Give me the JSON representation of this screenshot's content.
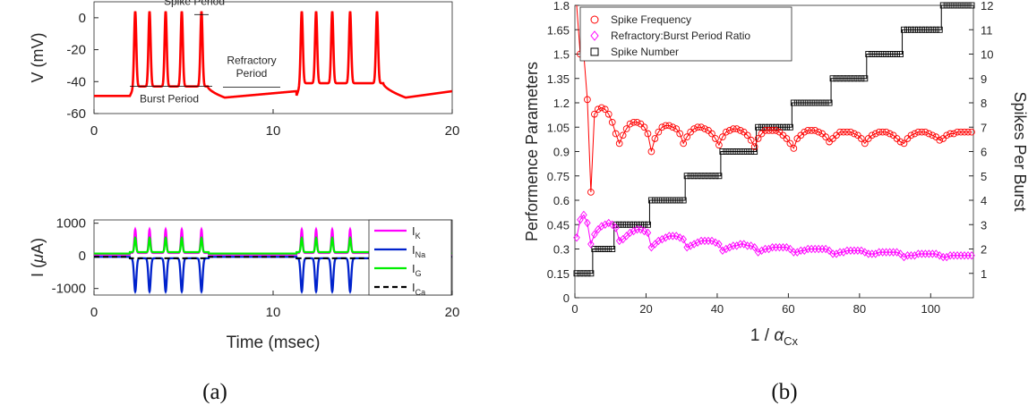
{
  "captions": {
    "a": "(a)",
    "b": "(b)"
  },
  "chart_data": [
    {
      "id": "voltage",
      "type": "line",
      "ylabel": "V (mV)",
      "xlim": [
        0,
        20
      ],
      "ylim": [
        -60,
        10
      ],
      "xticks": [
        0,
        10,
        20
      ],
      "yticks": [
        0,
        -20,
        -40,
        -60
      ],
      "color": "#ff0000",
      "rest_mv": -49,
      "spike_peak_mv": 4,
      "bursts": [
        {
          "plateau_mv": -43,
          "spike_times": [
            2.3,
            3.1,
            4.0,
            4.9,
            6.0
          ],
          "ahp_end": 7.3
        },
        {
          "plateau_mv": -41,
          "spike_times": [
            11.6,
            12.4,
            13.3,
            14.3,
            15.8
          ],
          "ahp_end": 17.4
        }
      ],
      "annotations": {
        "spike_period": "Spike Period",
        "burst_period": "Burst Period",
        "refractory_line1": "Refractory",
        "refractory_line2": "Period"
      }
    },
    {
      "id": "currents",
      "type": "line",
      "xlabel": "Time (msec)",
      "ylabel_main": "I (",
      "ylabel_mu": "μ",
      "ylabel_tail": "A)",
      "xlim": [
        0,
        20
      ],
      "ylim": [
        -1200,
        1100
      ],
      "xticks": [
        0,
        10,
        20
      ],
      "yticks": [
        1000,
        0,
        -1000
      ],
      "series": [
        {
          "name": "I",
          "sub": "K",
          "color": "#ff00ff",
          "spike_peak": 760,
          "base": 40
        },
        {
          "name": "I",
          "sub": "Na",
          "color": "#0022cc",
          "spike_peak": -1020,
          "base": -30
        },
        {
          "name": "I",
          "sub": "G",
          "color": "#00ee00",
          "spike_peak": 460,
          "base": 70
        },
        {
          "name": "I",
          "sub": "Ca",
          "color": "#000000",
          "dashed": true,
          "base": -30
        }
      ]
    },
    {
      "id": "performance",
      "type": "scatter",
      "xlabel_main": "1 / ",
      "xlabel_alpha": "α",
      "xlabel_sub": "Cx",
      "ylabel_left": "Performence Parameters",
      "ylabel_right": "Spikes Per Burst",
      "xlim": [
        0,
        112
      ],
      "ylim_left": [
        0,
        1.8
      ],
      "ylim_right": [
        0,
        12
      ],
      "xticks": [
        0,
        20,
        40,
        60,
        80,
        100
      ],
      "yticks_left": [
        "0",
        "0.15",
        "0.3",
        "0.45",
        "0.6",
        "0.75",
        "0.9",
        "1.05",
        "1.2",
        "1.35",
        "1.5",
        "1.65",
        "1.8"
      ],
      "yticks_right": [
        "1",
        "2",
        "3",
        "4",
        "5",
        "6",
        "7",
        "8",
        "9",
        "10",
        "11",
        "12"
      ],
      "legend": [
        "Spike Frequency",
        "Refractory:Burst Period Ratio",
        "Spike Number"
      ],
      "colors": {
        "freq": "#ff0000",
        "ratio": "#ff00ff",
        "count": "#000000"
      },
      "spike_number_steps": [
        {
          "x_start": 0,
          "x_end": 5,
          "n": 1
        },
        {
          "x_start": 5,
          "x_end": 11,
          "n": 2
        },
        {
          "x_start": 11,
          "x_end": 21,
          "n": 3
        },
        {
          "x_start": 21,
          "x_end": 31,
          "n": 4
        },
        {
          "x_start": 31,
          "x_end": 41,
          "n": 5
        },
        {
          "x_start": 41,
          "x_end": 51,
          "n": 6
        },
        {
          "x_start": 51,
          "x_end": 61,
          "n": 7
        },
        {
          "x_start": 61,
          "x_end": 72,
          "n": 8
        },
        {
          "x_start": 72,
          "x_end": 82,
          "n": 9
        },
        {
          "x_start": 82,
          "x_end": 92,
          "n": 10
        },
        {
          "x_start": 92,
          "x_end": 103,
          "n": 11
        },
        {
          "x_start": 103,
          "x_end": 112,
          "n": 12
        }
      ],
      "spike_frequency": [
        [
          0.5,
          1.8
        ],
        [
          1.5,
          1.5
        ],
        [
          2.5,
          1.5
        ],
        [
          3.5,
          1.22
        ],
        [
          4.5,
          0.65
        ],
        [
          5.5,
          1.13
        ],
        [
          6.5,
          1.16
        ],
        [
          7.5,
          1.17
        ],
        [
          8.5,
          1.16
        ],
        [
          9.5,
          1.13
        ],
        [
          10.5,
          1.08
        ],
        [
          11.5,
          1.01
        ],
        [
          12.5,
          0.95
        ],
        [
          13.5,
          1.0
        ],
        [
          14.5,
          1.04
        ],
        [
          15.5,
          1.07
        ],
        [
          16.5,
          1.08
        ],
        [
          17.5,
          1.08
        ],
        [
          18.5,
          1.07
        ],
        [
          19.5,
          1.05
        ],
        [
          20.5,
          1.01
        ],
        [
          21.5,
          0.9
        ],
        [
          22.5,
          0.98
        ],
        [
          23.5,
          1.02
        ],
        [
          24.5,
          1.05
        ],
        [
          25.5,
          1.06
        ],
        [
          26.5,
          1.06
        ],
        [
          27.5,
          1.05
        ],
        [
          28.5,
          1.04
        ],
        [
          29.5,
          1.01
        ],
        [
          30.5,
          0.95
        ],
        [
          31.5,
          0.99
        ],
        [
          32.5,
          1.02
        ],
        [
          33.5,
          1.04
        ],
        [
          34.5,
          1.05
        ],
        [
          35.5,
          1.05
        ],
        [
          36.5,
          1.04
        ],
        [
          37.5,
          1.03
        ],
        [
          38.5,
          1.01
        ],
        [
          39.5,
          0.98
        ],
        [
          40.5,
          0.94
        ],
        [
          41.5,
          0.99
        ],
        [
          42.5,
          1.02
        ],
        [
          43.5,
          1.03
        ],
        [
          44.5,
          1.04
        ],
        [
          45.5,
          1.04
        ],
        [
          46.5,
          1.03
        ],
        [
          47.5,
          1.02
        ],
        [
          48.5,
          1.0
        ],
        [
          49.5,
          0.97
        ],
        [
          50.5,
          0.93
        ],
        [
          51.5,
          0.98
        ],
        [
          52.5,
          1.01
        ],
        [
          53.5,
          1.03
        ],
        [
          54.5,
          1.03
        ],
        [
          55.5,
          1.03
        ],
        [
          56.5,
          1.03
        ],
        [
          57.5,
          1.02
        ],
        [
          58.5,
          1.0
        ],
        [
          59.5,
          0.98
        ],
        [
          60.5,
          0.95
        ],
        [
          61.5,
          0.92
        ],
        [
          62.5,
          0.98
        ],
        [
          63.5,
          1.0
        ],
        [
          64.5,
          1.02
        ],
        [
          65.5,
          1.03
        ],
        [
          66.5,
          1.03
        ],
        [
          67.5,
          1.03
        ],
        [
          68.5,
          1.02
        ],
        [
          69.5,
          1.01
        ],
        [
          70.5,
          0.99
        ],
        [
          71.5,
          0.96
        ],
        [
          72.5,
          0.98
        ],
        [
          73.5,
          1.0
        ],
        [
          74.5,
          1.02
        ],
        [
          75.5,
          1.02
        ],
        [
          76.5,
          1.02
        ],
        [
          77.5,
          1.02
        ],
        [
          78.5,
          1.01
        ],
        [
          79.5,
          1.0
        ],
        [
          80.5,
          0.98
        ],
        [
          81.5,
          0.95
        ],
        [
          82.5,
          0.98
        ],
        [
          83.5,
          1.0
        ],
        [
          84.5,
          1.01
        ],
        [
          85.5,
          1.02
        ],
        [
          86.5,
          1.02
        ],
        [
          87.5,
          1.02
        ],
        [
          88.5,
          1.01
        ],
        [
          89.5,
          1.0
        ],
        [
          90.5,
          0.98
        ],
        [
          91.5,
          0.96
        ],
        [
          92.5,
          0.95
        ],
        [
          93.5,
          0.98
        ],
        [
          94.5,
          1.0
        ],
        [
          95.5,
          1.01
        ],
        [
          96.5,
          1.02
        ],
        [
          97.5,
          1.02
        ],
        [
          98.5,
          1.02
        ],
        [
          99.5,
          1.01
        ],
        [
          100.5,
          1.0
        ],
        [
          101.5,
          0.99
        ],
        [
          102.5,
          0.97
        ],
        [
          103.5,
          0.98
        ],
        [
          104.5,
          1.0
        ],
        [
          105.5,
          1.01
        ],
        [
          106.5,
          1.01
        ],
        [
          107.5,
          1.02
        ],
        [
          108.5,
          1.02
        ],
        [
          109.5,
          1.02
        ],
        [
          110.5,
          1.02
        ],
        [
          111.5,
          1.02
        ]
      ],
      "ratio": [
        [
          0.5,
          0.37
        ],
        [
          1.5,
          0.48
        ],
        [
          2.5,
          0.51
        ],
        [
          3.5,
          0.46
        ],
        [
          4.5,
          0.33
        ],
        [
          5.5,
          0.39
        ],
        [
          6.5,
          0.42
        ],
        [
          7.5,
          0.44
        ],
        [
          8.5,
          0.45
        ],
        [
          9.5,
          0.46
        ],
        [
          10.5,
          0.45
        ],
        [
          11.5,
          0.43
        ],
        [
          12.5,
          0.35
        ],
        [
          13.5,
          0.36
        ],
        [
          14.5,
          0.38
        ],
        [
          15.5,
          0.4
        ],
        [
          16.5,
          0.41
        ],
        [
          17.5,
          0.42
        ],
        [
          18.5,
          0.42
        ],
        [
          19.5,
          0.41
        ],
        [
          20.5,
          0.4
        ],
        [
          21.5,
          0.31
        ],
        [
          22.5,
          0.33
        ],
        [
          23.5,
          0.35
        ],
        [
          24.5,
          0.36
        ],
        [
          25.5,
          0.37
        ],
        [
          26.5,
          0.38
        ],
        [
          27.5,
          0.38
        ],
        [
          28.5,
          0.38
        ],
        [
          29.5,
          0.37
        ],
        [
          30.5,
          0.36
        ],
        [
          31.5,
          0.31
        ],
        [
          32.5,
          0.32
        ],
        [
          33.5,
          0.33
        ],
        [
          34.5,
          0.34
        ],
        [
          35.5,
          0.35
        ],
        [
          36.5,
          0.35
        ],
        [
          37.5,
          0.35
        ],
        [
          38.5,
          0.35
        ],
        [
          39.5,
          0.34
        ],
        [
          40.5,
          0.33
        ],
        [
          41.5,
          0.29
        ],
        [
          42.5,
          0.3
        ],
        [
          43.5,
          0.31
        ],
        [
          44.5,
          0.32
        ],
        [
          45.5,
          0.32
        ],
        [
          46.5,
          0.33
        ],
        [
          47.5,
          0.33
        ],
        [
          48.5,
          0.32
        ],
        [
          49.5,
          0.32
        ],
        [
          50.5,
          0.31
        ],
        [
          51.5,
          0.28
        ],
        [
          52.5,
          0.29
        ],
        [
          53.5,
          0.3
        ],
        [
          54.5,
          0.3
        ],
        [
          55.5,
          0.31
        ],
        [
          56.5,
          0.31
        ],
        [
          57.5,
          0.31
        ],
        [
          58.5,
          0.31
        ],
        [
          59.5,
          0.31
        ],
        [
          60.5,
          0.3
        ],
        [
          61.5,
          0.28
        ],
        [
          62.5,
          0.28
        ],
        [
          63.5,
          0.29
        ],
        [
          64.5,
          0.29
        ],
        [
          65.5,
          0.3
        ],
        [
          66.5,
          0.3
        ],
        [
          67.5,
          0.3
        ],
        [
          68.5,
          0.3
        ],
        [
          69.5,
          0.3
        ],
        [
          70.5,
          0.3
        ],
        [
          71.5,
          0.29
        ],
        [
          72.5,
          0.27
        ],
        [
          73.5,
          0.27
        ],
        [
          74.5,
          0.28
        ],
        [
          75.5,
          0.28
        ],
        [
          76.5,
          0.29
        ],
        [
          77.5,
          0.29
        ],
        [
          78.5,
          0.29
        ],
        [
          79.5,
          0.29
        ],
        [
          80.5,
          0.29
        ],
        [
          81.5,
          0.28
        ],
        [
          82.5,
          0.27
        ],
        [
          83.5,
          0.27
        ],
        [
          84.5,
          0.27
        ],
        [
          85.5,
          0.28
        ],
        [
          86.5,
          0.28
        ],
        [
          87.5,
          0.28
        ],
        [
          88.5,
          0.28
        ],
        [
          89.5,
          0.28
        ],
        [
          90.5,
          0.28
        ],
        [
          91.5,
          0.27
        ],
        [
          92.5,
          0.25
        ],
        [
          93.5,
          0.26
        ],
        [
          94.5,
          0.26
        ],
        [
          95.5,
          0.26
        ],
        [
          96.5,
          0.27
        ],
        [
          97.5,
          0.27
        ],
        [
          98.5,
          0.27
        ],
        [
          99.5,
          0.27
        ],
        [
          100.5,
          0.27
        ],
        [
          101.5,
          0.27
        ],
        [
          102.5,
          0.26
        ],
        [
          103.5,
          0.25
        ],
        [
          104.5,
          0.25
        ],
        [
          105.5,
          0.26
        ],
        [
          106.5,
          0.26
        ],
        [
          107.5,
          0.26
        ],
        [
          108.5,
          0.26
        ],
        [
          109.5,
          0.26
        ],
        [
          110.5,
          0.26
        ],
        [
          111.5,
          0.26
        ]
      ]
    }
  ]
}
